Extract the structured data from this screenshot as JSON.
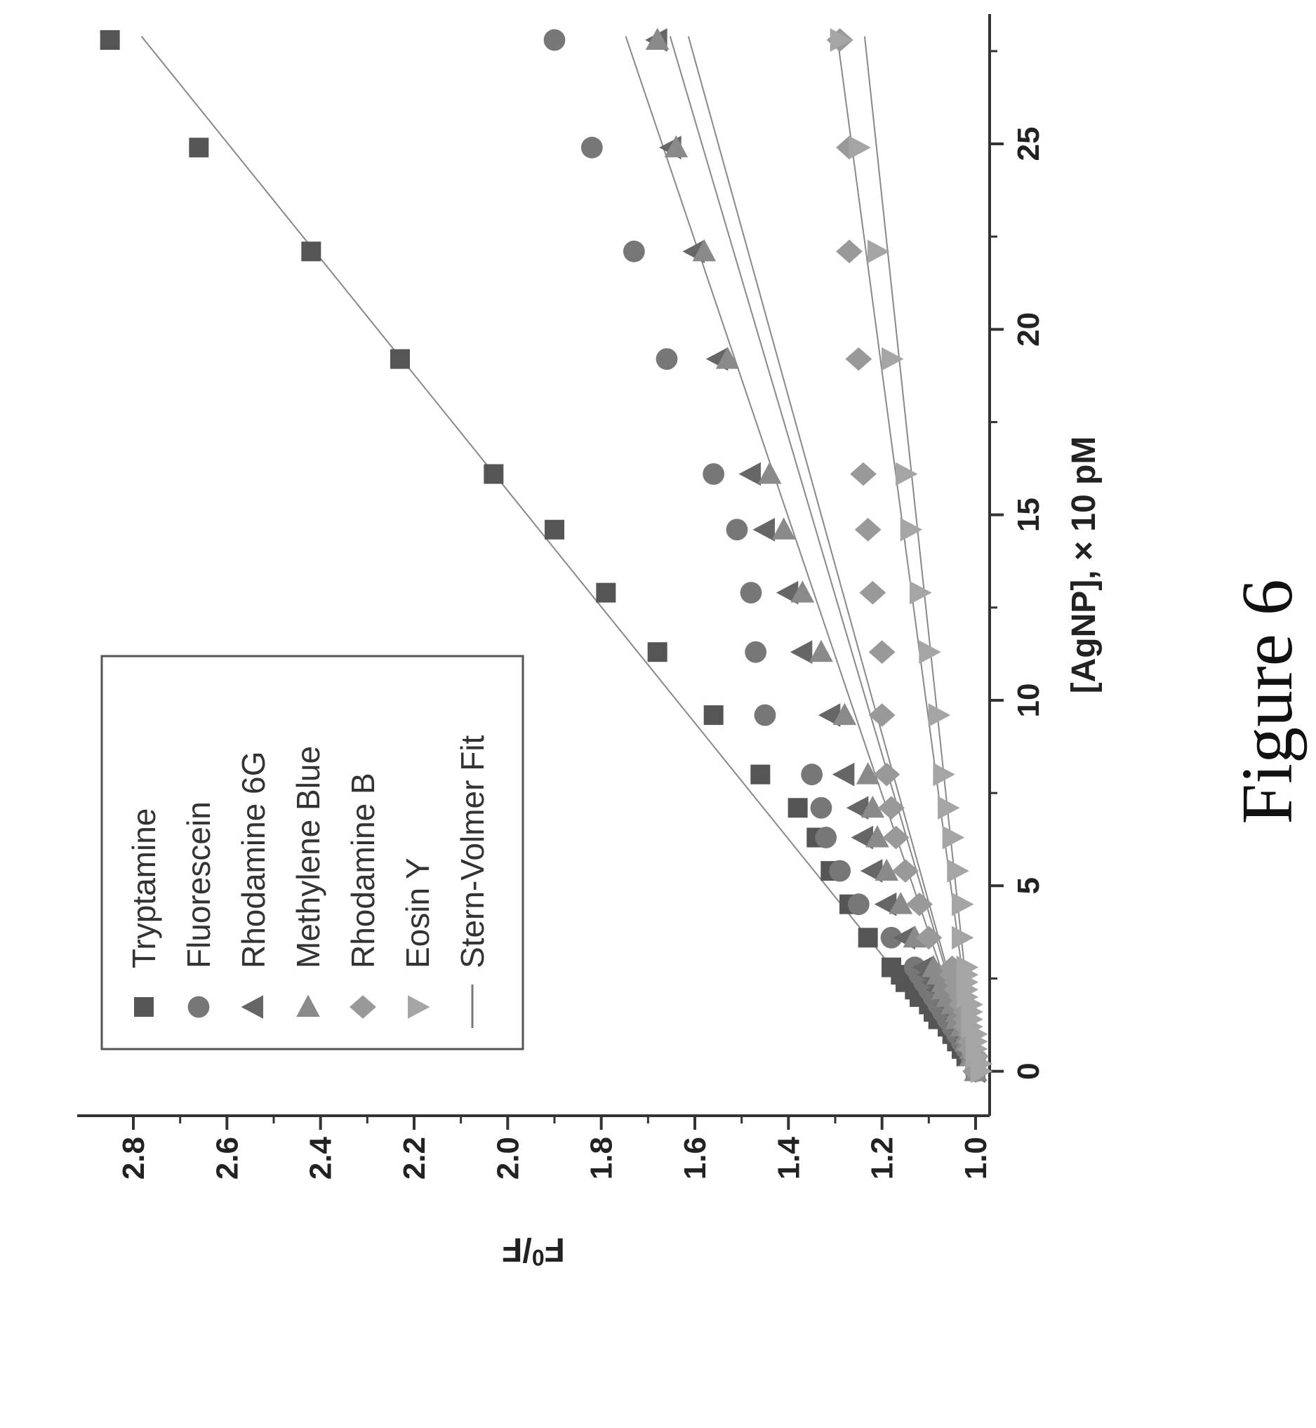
{
  "caption": "Figure 6",
  "chart_data": {
    "type": "scatter",
    "title": "",
    "xlabel": "[AgNP], × 10 pM",
    "ylabel": "F₀/F",
    "ylabel_base": "F",
    "ylabel_sup": "0",
    "ylabel_tail": "/F",
    "xlim": [
      -1.2,
      28.5
    ],
    "ylim": [
      0.97,
      2.92
    ],
    "xticks": [
      "0",
      "5",
      "10",
      "15",
      "20",
      "25"
    ],
    "xtick_values": [
      0,
      5,
      10,
      15,
      20,
      25
    ],
    "yticks": [
      "1.0",
      "1.2",
      "1.4",
      "1.6",
      "1.8",
      "2.0",
      "2.2",
      "2.4",
      "2.6",
      "2.8"
    ],
    "ytick_values": [
      1.0,
      1.2,
      1.4,
      1.6,
      1.8,
      2.0,
      2.2,
      2.4,
      2.6,
      2.8
    ],
    "orientation": "rotated 90° counter-clockwise",
    "legend_position": "top-left",
    "fit_label": "Stern-Volmer Fit",
    "x": [
      0,
      0.2,
      0.4,
      0.6,
      0.8,
      1.0,
      1.2,
      1.4,
      1.6,
      1.8,
      2.0,
      2.2,
      2.4,
      2.6,
      2.8,
      3.6,
      4.5,
      5.4,
      6.3,
      7.1,
      8.0,
      9.6,
      11.3,
      12.9,
      14.6,
      16.1,
      19.2,
      22.1,
      24.9,
      27.8
    ],
    "series": [
      {
        "name": "Tryptamine",
        "marker": "square",
        "fit_slope": 0.0639,
        "values": [
          1.0,
          1.0,
          1.02,
          1.03,
          1.04,
          1.05,
          1.06,
          1.08,
          1.09,
          1.1,
          1.12,
          1.13,
          1.15,
          1.16,
          1.18,
          1.23,
          1.27,
          1.31,
          1.34,
          1.38,
          1.46,
          1.56,
          1.68,
          1.79,
          1.9,
          2.03,
          2.23,
          2.42,
          2.66,
          2.85
        ]
      },
      {
        "name": "Fluorescein",
        "marker": "circle",
        "fit_slope": 0.0268,
        "values": [
          1.0,
          1.0,
          1.01,
          1.02,
          1.03,
          1.04,
          1.05,
          1.06,
          1.07,
          1.08,
          1.09,
          1.1,
          1.11,
          1.12,
          1.13,
          1.18,
          1.25,
          1.29,
          1.32,
          1.33,
          1.35,
          1.45,
          1.47,
          1.48,
          1.51,
          1.56,
          1.66,
          1.73,
          1.82,
          1.9
        ]
      },
      {
        "name": "Rhodamine 6G",
        "marker": "triangle-up",
        "fit_slope": 0.0234,
        "values": [
          1.0,
          1.0,
          1.01,
          1.01,
          1.02,
          1.03,
          1.04,
          1.04,
          1.05,
          1.06,
          1.07,
          1.08,
          1.09,
          1.1,
          1.11,
          1.15,
          1.19,
          1.22,
          1.24,
          1.25,
          1.28,
          1.31,
          1.37,
          1.4,
          1.45,
          1.48,
          1.55,
          1.6,
          1.65,
          1.68
        ]
      },
      {
        "name": "Methylene Blue",
        "marker": "triangle-right",
        "fit_slope": 0.022,
        "values": [
          1.0,
          1.0,
          1.01,
          1.01,
          1.02,
          1.02,
          1.03,
          1.04,
          1.04,
          1.05,
          1.06,
          1.07,
          1.07,
          1.08,
          1.09,
          1.13,
          1.16,
          1.19,
          1.21,
          1.22,
          1.23,
          1.28,
          1.33,
          1.37,
          1.41,
          1.44,
          1.53,
          1.58,
          1.64,
          1.68
        ]
      },
      {
        "name": "Rhodamine B",
        "marker": "diamond",
        "fit_slope": 0.0106,
        "values": [
          1.0,
          1.0,
          1.0,
          1.01,
          1.01,
          1.01,
          1.02,
          1.02,
          1.02,
          1.03,
          1.03,
          1.04,
          1.04,
          1.05,
          1.05,
          1.1,
          1.12,
          1.15,
          1.17,
          1.18,
          1.19,
          1.2,
          1.2,
          1.22,
          1.23,
          1.24,
          1.25,
          1.27,
          1.27,
          1.29
        ]
      },
      {
        "name": "Eosin Y",
        "marker": "triangle-down",
        "fit_slope": 0.0085,
        "values": [
          0.99,
          0.99,
          1.0,
          1.0,
          1.0,
          1.0,
          1.01,
          1.01,
          1.01,
          1.01,
          1.02,
          1.02,
          1.02,
          1.02,
          1.02,
          1.03,
          1.03,
          1.04,
          1.05,
          1.06,
          1.07,
          1.08,
          1.1,
          1.12,
          1.14,
          1.15,
          1.18,
          1.21,
          1.25,
          1.29
        ]
      }
    ]
  }
}
